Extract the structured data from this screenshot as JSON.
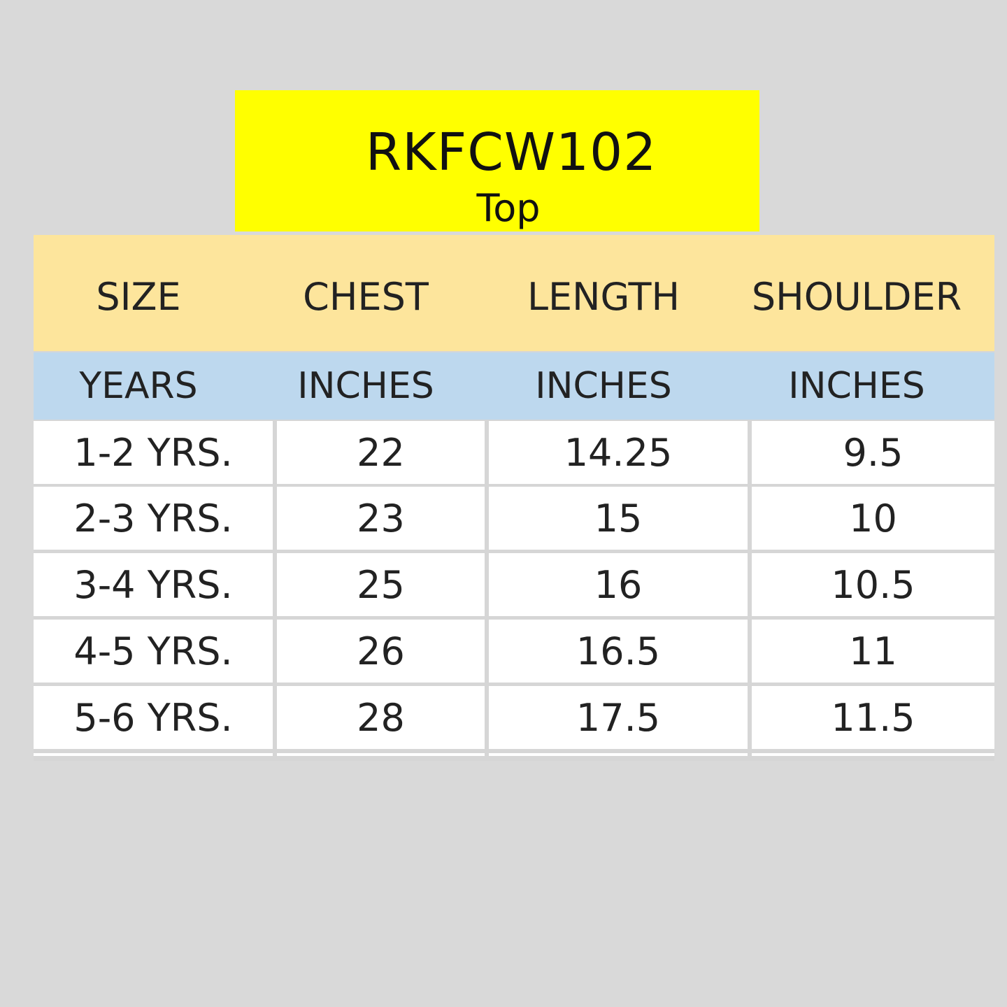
{
  "title": {
    "code": "RKFCW102",
    "type": "Top"
  },
  "colors": {
    "title_bg": "#ffff00",
    "header_bg": "#fde59c",
    "units_bg": "#bdd8ee",
    "page_bg": "#d9d9d9"
  },
  "table": {
    "headers": [
      "SIZE",
      "CHEST",
      "LENGTH",
      "SHOULDER"
    ],
    "units": [
      "YEARS",
      "INCHES",
      "INCHES",
      "INCHES"
    ],
    "rows": [
      [
        "1-2 YRS.",
        "22",
        "14.25",
        "9.5"
      ],
      [
        "2-3 YRS.",
        "23",
        "15",
        "10"
      ],
      [
        "3-4 YRS.",
        "25",
        "16",
        "10.5"
      ],
      [
        "4-5 YRS.",
        "26",
        "16.5",
        "11"
      ],
      [
        "5-6 YRS.",
        "28",
        "17.5",
        "11.5"
      ]
    ]
  }
}
